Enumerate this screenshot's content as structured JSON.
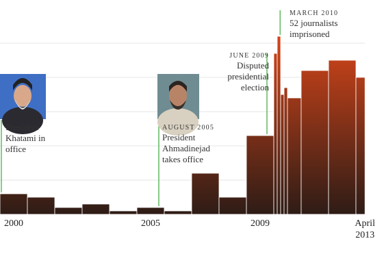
{
  "chart_data": {
    "type": "histogram",
    "bins": [
      2000,
      2001,
      2002,
      2003,
      2004,
      2005,
      2006,
      2007,
      2008,
      2009,
      2010,
      2010.125,
      2010.25,
      2010.375,
      2010.5,
      2011,
      2012,
      2013,
      2013.33
    ],
    "values": [
      6,
      5,
      2,
      3,
      1,
      2,
      1,
      12,
      5,
      23,
      47,
      52,
      35,
      37,
      34,
      42,
      45,
      40
    ],
    "colors": [
      "#d6461a",
      "#2e1c16"
    ],
    "xlim": [
      2000,
      2014
    ],
    "xticks": [
      {
        "value": 2000.5,
        "label": "2000"
      },
      {
        "value": 2005.5,
        "label": "2005"
      },
      {
        "value": 2009.5,
        "label": "2009"
      },
      {
        "value": 2013.33,
        "label": "April 2013"
      }
    ],
    "ylim": [
      0,
      60
    ],
    "yticks": [
      10,
      20,
      30,
      40,
      50
    ],
    "grid": true,
    "annotations": [
      {
        "x": 2000.05,
        "text": "President Khatami in office"
      },
      {
        "x": 2005.8,
        "heading": "AUGUST 2005",
        "text": "President Ahmadinejad takes office"
      },
      {
        "x": 2009.75,
        "heading": "JUNE 2009",
        "text": "Disputed presidential election"
      },
      {
        "x": 2010.23,
        "heading": "MARCH 2010",
        "text": "52 journalists imprisoned"
      }
    ]
  }
}
